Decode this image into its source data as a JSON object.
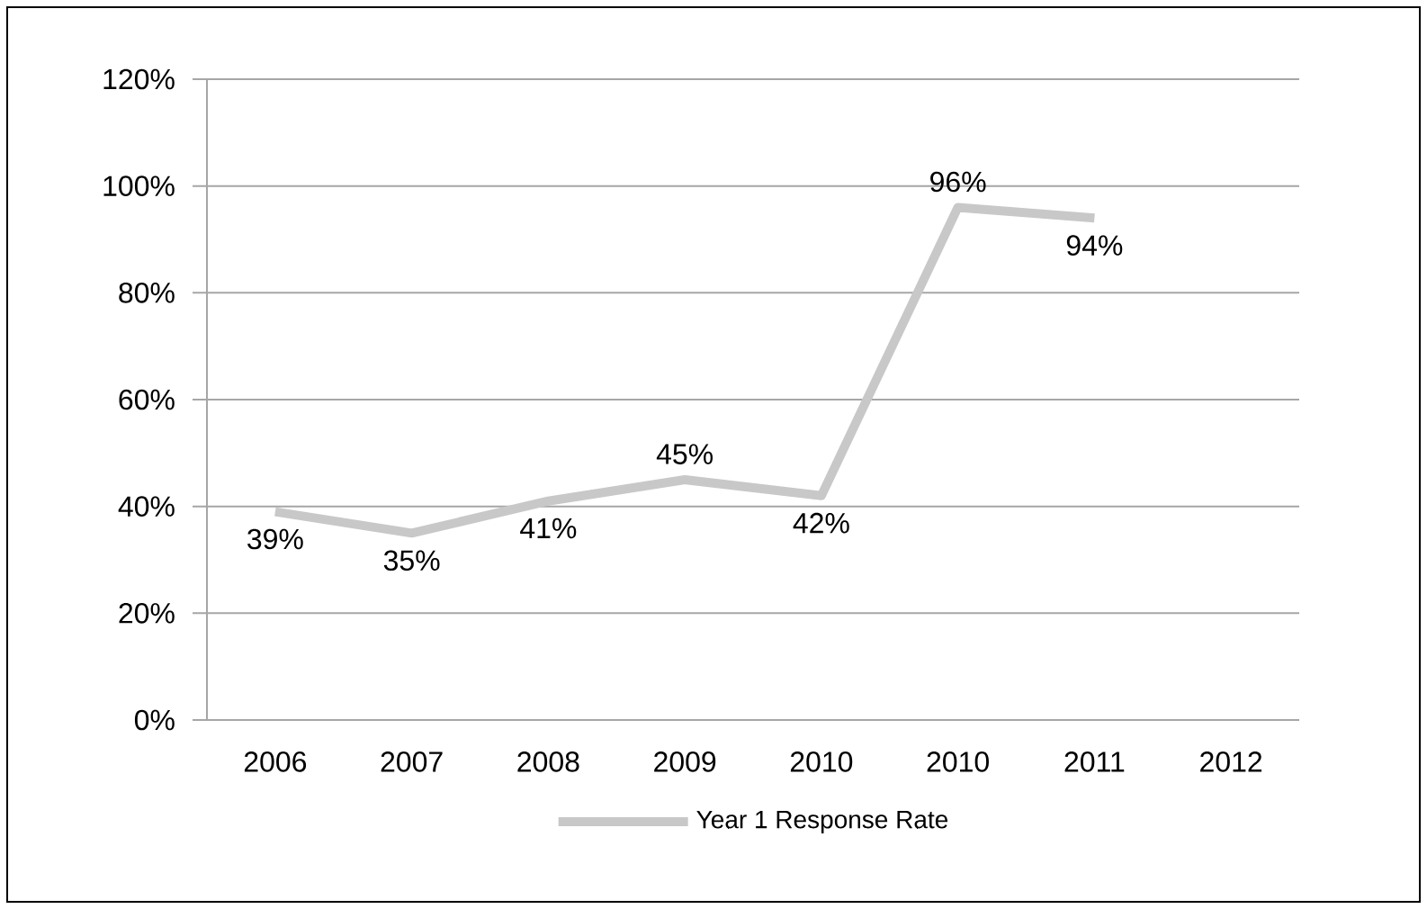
{
  "chart_data": {
    "type": "line",
    "categories": [
      "2006",
      "2007",
      "2008",
      "2009",
      "2010",
      "2010",
      "2011",
      "2012"
    ],
    "series": [
      {
        "name": "Year 1 Response Rate",
        "color": "#c8c8c8",
        "values": [
          39,
          35,
          41,
          45,
          42,
          96,
          94,
          null
        ],
        "value_labels": [
          "39%",
          "35%",
          "41%",
          "45%",
          "42%",
          "96%",
          "94%",
          null
        ]
      }
    ],
    "ylim": [
      0,
      120
    ],
    "yticks": [
      {
        "value": 0,
        "label": "0%"
      },
      {
        "value": 20,
        "label": "20%"
      },
      {
        "value": 40,
        "label": "40%"
      },
      {
        "value": 60,
        "label": "60%"
      },
      {
        "value": 80,
        "label": "80%"
      },
      {
        "value": 100,
        "label": "100%"
      },
      {
        "value": 120,
        "label": "120%"
      }
    ],
    "grid": "y",
    "legend": "bottom"
  }
}
